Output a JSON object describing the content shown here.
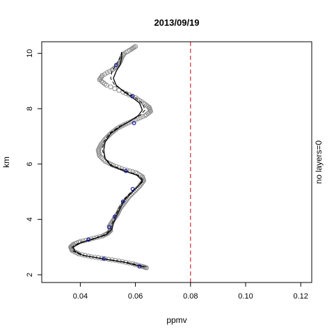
{
  "chart_data": {
    "type": "line",
    "title": "2013/09/19",
    "xlabel": "ppmv",
    "ylabel": "km",
    "side_label": "no layers=0",
    "xlim": [
      0.026,
      0.124
    ],
    "ylim": [
      1.72,
      10.42
    ],
    "x_ticks": [
      0.04,
      0.06,
      0.08,
      0.1,
      0.12
    ],
    "x_tick_labels": [
      "0.04",
      "0.06",
      "0.08",
      "0.10",
      "0.12"
    ],
    "y_ticks": [
      2,
      4,
      6,
      8,
      10
    ],
    "y_tick_labels": [
      "2",
      "4",
      "6",
      "8",
      "10"
    ],
    "threshold": {
      "x": 0.08,
      "color": "#cc0000",
      "style": "dashed"
    },
    "colors": {
      "raw": "#8c8c8c",
      "smooth": "#000000",
      "markers": "#1a1aa8"
    },
    "series": [
      {
        "role": "raw observations (grey circles)",
        "points": [
          [
            0.064,
            2.25
          ],
          [
            0.0625,
            2.3
          ],
          [
            0.059,
            2.4
          ],
          [
            0.054,
            2.5
          ],
          [
            0.049,
            2.58
          ],
          [
            0.044,
            2.65
          ],
          [
            0.0395,
            2.75
          ],
          [
            0.037,
            2.88
          ],
          [
            0.0365,
            3.0
          ],
          [
            0.0375,
            3.1
          ],
          [
            0.04,
            3.2
          ],
          [
            0.044,
            3.3
          ],
          [
            0.048,
            3.4
          ],
          [
            0.05,
            3.5
          ],
          [
            0.051,
            3.6
          ],
          [
            0.0505,
            3.75
          ],
          [
            0.0515,
            3.9
          ],
          [
            0.0525,
            4.05
          ],
          [
            0.0535,
            4.2
          ],
          [
            0.0545,
            4.4
          ],
          [
            0.056,
            4.6
          ],
          [
            0.0575,
            4.8
          ],
          [
            0.0595,
            5.0
          ],
          [
            0.0615,
            5.2
          ],
          [
            0.063,
            5.4
          ],
          [
            0.0625,
            5.55
          ],
          [
            0.06,
            5.7
          ],
          [
            0.056,
            5.8
          ],
          [
            0.052,
            5.95
          ],
          [
            0.049,
            6.1
          ],
          [
            0.047,
            6.3
          ],
          [
            0.0465,
            6.5
          ],
          [
            0.0475,
            6.7
          ],
          [
            0.049,
            6.9
          ],
          [
            0.051,
            7.1
          ],
          [
            0.0535,
            7.3
          ],
          [
            0.0565,
            7.45
          ],
          [
            0.06,
            7.6
          ],
          [
            0.0635,
            7.75
          ],
          [
            0.0655,
            7.9
          ],
          [
            0.065,
            8.05
          ],
          [
            0.063,
            8.2
          ],
          [
            0.06,
            8.4
          ],
          [
            0.0555,
            8.6
          ],
          [
            0.0495,
            8.85
          ],
          [
            0.047,
            9.05
          ],
          [
            0.048,
            9.2
          ],
          [
            0.0515,
            9.4
          ],
          [
            0.0535,
            9.55
          ],
          [
            0.0545,
            9.7
          ],
          [
            0.055,
            9.85
          ],
          [
            0.056,
            10.0
          ],
          [
            0.0585,
            10.15
          ],
          [
            0.06,
            10.25
          ]
        ]
      },
      {
        "role": "smoothed profile (solid line)",
        "points": [
          [
            0.063,
            2.28
          ],
          [
            0.056,
            2.45
          ],
          [
            0.048,
            2.58
          ],
          [
            0.041,
            2.7
          ],
          [
            0.038,
            2.85
          ],
          [
            0.0375,
            3.0
          ],
          [
            0.04,
            3.15
          ],
          [
            0.045,
            3.3
          ],
          [
            0.0495,
            3.45
          ],
          [
            0.0515,
            3.65
          ],
          [
            0.052,
            3.85
          ],
          [
            0.053,
            4.1
          ],
          [
            0.0545,
            4.4
          ],
          [
            0.056,
            4.7
          ],
          [
            0.059,
            5.0
          ],
          [
            0.061,
            5.2
          ],
          [
            0.0625,
            5.4
          ],
          [
            0.0605,
            5.6
          ],
          [
            0.056,
            5.75
          ],
          [
            0.051,
            5.95
          ],
          [
            0.049,
            6.2
          ],
          [
            0.0485,
            6.5
          ],
          [
            0.049,
            6.8
          ],
          [
            0.051,
            7.1
          ],
          [
            0.0545,
            7.35
          ],
          [
            0.058,
            7.55
          ],
          [
            0.061,
            7.75
          ],
          [
            0.0625,
            7.95
          ],
          [
            0.0615,
            8.2
          ],
          [
            0.059,
            8.4
          ],
          [
            0.056,
            8.6
          ],
          [
            0.053,
            8.85
          ],
          [
            0.052,
            9.1
          ],
          [
            0.053,
            9.35
          ],
          [
            0.0545,
            9.6
          ],
          [
            0.055,
            9.85
          ],
          [
            0.055,
            10.05
          ]
        ]
      },
      {
        "role": "comparison profile (dashed line)",
        "points": [
          [
            0.064,
            2.28
          ],
          [
            0.057,
            2.45
          ],
          [
            0.0485,
            2.58
          ],
          [
            0.0405,
            2.7
          ],
          [
            0.0375,
            2.85
          ],
          [
            0.037,
            3.0
          ],
          [
            0.0395,
            3.15
          ],
          [
            0.0445,
            3.3
          ],
          [
            0.049,
            3.45
          ],
          [
            0.051,
            3.65
          ],
          [
            0.0515,
            3.85
          ],
          [
            0.0525,
            4.1
          ],
          [
            0.054,
            4.4
          ],
          [
            0.0555,
            4.7
          ],
          [
            0.0585,
            5.0
          ],
          [
            0.061,
            5.2
          ],
          [
            0.063,
            5.4
          ],
          [
            0.061,
            5.6
          ],
          [
            0.0565,
            5.75
          ],
          [
            0.0515,
            5.95
          ],
          [
            0.049,
            6.2
          ],
          [
            0.048,
            6.5
          ],
          [
            0.0485,
            6.8
          ],
          [
            0.0505,
            7.1
          ],
          [
            0.054,
            7.35
          ],
          [
            0.058,
            7.55
          ],
          [
            0.0615,
            7.75
          ],
          [
            0.0635,
            7.95
          ],
          [
            0.0625,
            8.2
          ],
          [
            0.06,
            8.4
          ],
          [
            0.0565,
            8.6
          ],
          [
            0.0525,
            8.85
          ],
          [
            0.051,
            9.1
          ],
          [
            0.0515,
            9.35
          ],
          [
            0.053,
            9.6
          ],
          [
            0.0545,
            9.85
          ],
          [
            0.055,
            10.05
          ]
        ]
      },
      {
        "role": "blue circle markers",
        "points": [
          [
            0.0615,
            2.3
          ],
          [
            0.0485,
            2.58
          ],
          [
            0.043,
            3.27
          ],
          [
            0.0505,
            3.72
          ],
          [
            0.0525,
            4.1
          ],
          [
            0.0555,
            4.65
          ],
          [
            0.059,
            5.1
          ],
          [
            0.0565,
            5.75
          ],
          [
            0.0595,
            7.48
          ],
          [
            0.059,
            8.45
          ],
          [
            0.053,
            9.58
          ]
        ]
      }
    ]
  }
}
